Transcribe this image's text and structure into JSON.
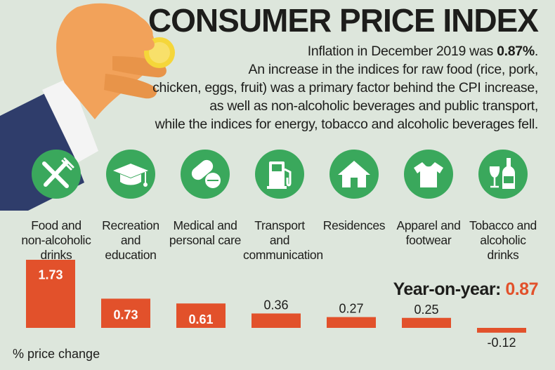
{
  "title": "CONSUMER PRICE INDEX",
  "subtitle": {
    "lead": "Inflation in December 2019 was ",
    "rate": "0.87%",
    "tail": ".",
    "line2": "An increase in the indices for raw food (rice, pork,",
    "line3": "chicken, eggs, fruit) was a primary factor behind the CPI increase,",
    "line4": "as well as non-alcoholic beverages and public transport,",
    "line5": "while the indices for energy, tobacco and alcoholic beverages fell."
  },
  "categories": [
    {
      "label": "Food and non-alcoholic drinks",
      "icon": "fork-knife-icon"
    },
    {
      "label": "Recreation and education",
      "icon": "graduation-cap-icon"
    },
    {
      "label": "Medical and personal care",
      "icon": "pills-icon"
    },
    {
      "label": "Transport and communication",
      "icon": "fuel-pump-icon"
    },
    {
      "label": "Residences",
      "icon": "house-icon"
    },
    {
      "label": "Apparel and footwear",
      "icon": "tshirt-icon"
    },
    {
      "label": "Tobacco and alcoholic drinks",
      "icon": "wine-bottle-icon"
    }
  ],
  "yoy": {
    "label": "Year-on-year: ",
    "value": "0.87"
  },
  "axis_label": "% price change",
  "colors": {
    "bar": "#e2512b",
    "icon_bg": "#3aa85c",
    "background": "#dde6dc",
    "accent": "#e2512b"
  },
  "chart_data": {
    "type": "bar",
    "title": "CONSUMER PRICE INDEX",
    "categories": [
      "Food and non-alcoholic drinks",
      "Recreation and education",
      "Medical and personal care",
      "Transport and communication",
      "Residences",
      "Apparel and footwear",
      "Tobacco and alcoholic drinks"
    ],
    "values": [
      1.73,
      0.73,
      0.61,
      0.36,
      0.27,
      0.25,
      -0.12
    ],
    "value_labels": [
      "1.73",
      "0.73",
      "0.61",
      "0.36",
      "0.27",
      "0.25",
      "-0.12"
    ],
    "ylabel": "% price change",
    "ylim": [
      -0.12,
      1.73
    ]
  }
}
